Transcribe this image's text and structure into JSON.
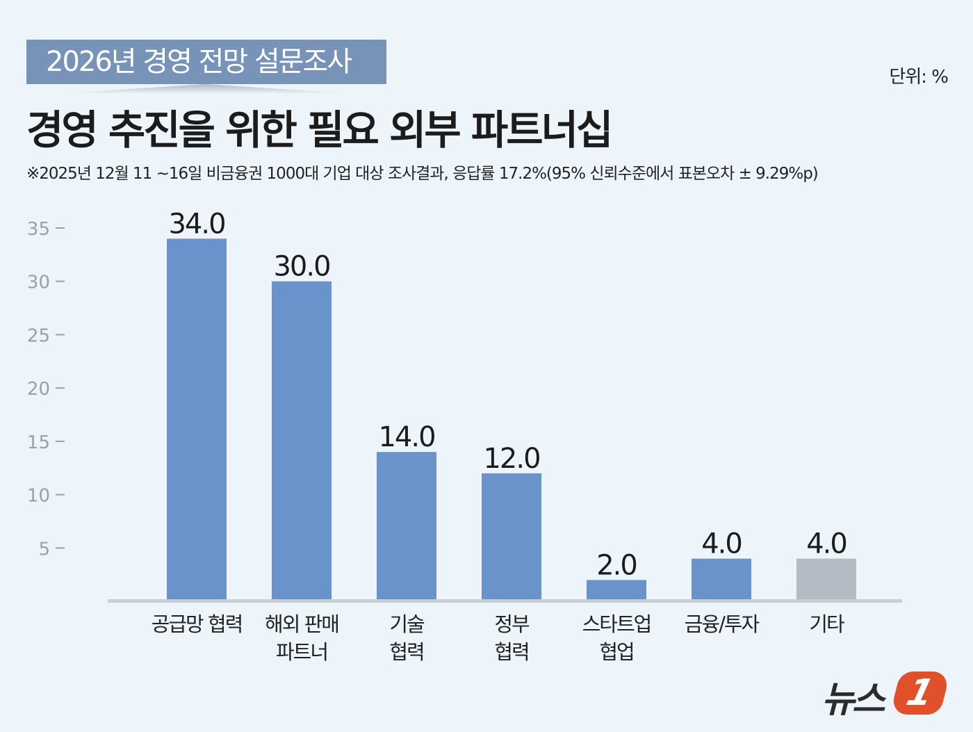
{
  "header": {
    "tag": "2026년 경영 전망 설문조사",
    "title": "경영 추진을 위한 필요 외부 파트너십",
    "subtitle": "※2025년 12월 11 ~16일 비금융권 1000대 기업 대상 조사결과, 응답률 17.2%(95% 신뢰수준에서 표본오차 ± 9.29%p)",
    "unit": "단위: %"
  },
  "logo": {
    "text": "뉴스",
    "mark": "1"
  },
  "chart_data": {
    "type": "bar",
    "title": "경영 추진을 위한 필요 외부 파트너십",
    "categories": [
      [
        "공급망 협력"
      ],
      [
        "해외 판매",
        "파트너"
      ],
      [
        "기술",
        "협력"
      ],
      [
        "정부",
        "협력"
      ],
      [
        "스타트업",
        "협업"
      ],
      [
        "금융/투자"
      ],
      [
        "기타"
      ]
    ],
    "values": [
      34.0,
      30.0,
      14.0,
      12.0,
      2.0,
      4.0,
      4.0
    ],
    "value_labels": [
      "34.0",
      "30.0",
      "14.0",
      "12.0",
      "2.0",
      "4.0",
      "4.0"
    ],
    "yticks": [
      5,
      10,
      15,
      20,
      25,
      30,
      35
    ],
    "ylim": [
      0,
      35
    ],
    "grid": false,
    "colors": {
      "bar": "#6a93cb",
      "other": "#b3bbc5",
      "baseline": "#c9ced3"
    }
  }
}
